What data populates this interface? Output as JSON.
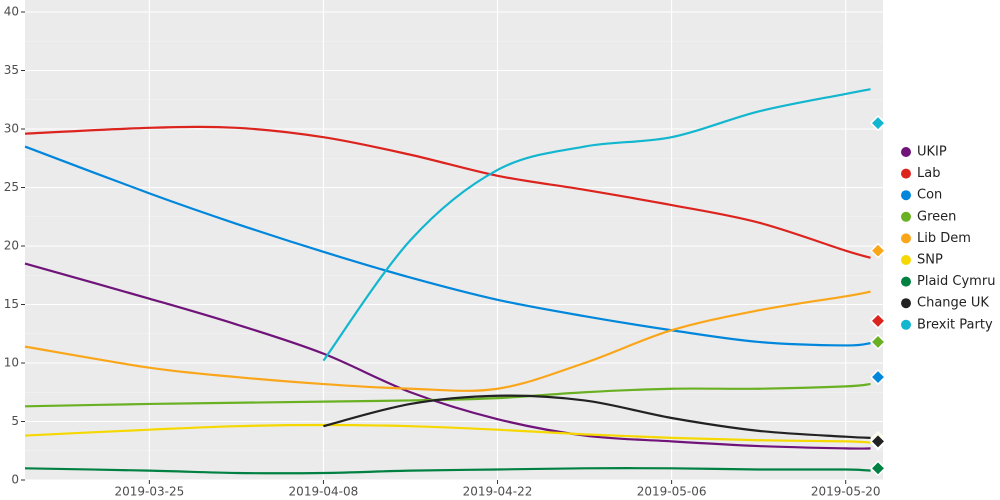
{
  "chart_data": {
    "type": "line",
    "x": [
      "2019-03-15",
      "2019-03-25",
      "2019-04-01",
      "2019-04-08",
      "2019-04-15",
      "2019-04-22",
      "2019-04-29",
      "2019-05-06",
      "2019-05-13",
      "2019-05-20",
      "2019-05-22"
    ],
    "xlim": [
      "2019-03-15",
      "2019-05-23"
    ],
    "xticks": [
      "2019-03-25",
      "2019-04-08",
      "2019-04-22",
      "2019-05-06",
      "2019-05-20"
    ],
    "ylim": [
      0,
      40
    ],
    "yticks": [
      0,
      5,
      10,
      15,
      20,
      25,
      30,
      35,
      40
    ],
    "grid": true,
    "result_date": "2019-05-23",
    "series": [
      {
        "name": "UKIP",
        "color": "#70147a",
        "values": [
          18.5,
          15.5,
          13.3,
          10.8,
          7.5,
          5.2,
          3.8,
          3.3,
          2.9,
          2.7,
          2.7
        ],
        "result": 3.2
      },
      {
        "name": "Lab",
        "color": "#dc241f",
        "values": [
          29.6,
          30.1,
          30.1,
          29.3,
          27.8,
          26.0,
          24.8,
          23.5,
          22.0,
          19.6,
          19.0
        ],
        "result": 13.6
      },
      {
        "name": "Con",
        "color": "#0087dc",
        "values": [
          28.5,
          24.5,
          21.9,
          19.5,
          17.3,
          15.4,
          14.0,
          12.8,
          11.8,
          11.5,
          11.7
        ],
        "result": 8.8
      },
      {
        "name": "Green",
        "color": "#6ab023",
        "values": [
          6.3,
          6.5,
          6.6,
          6.7,
          6.8,
          7.0,
          7.5,
          7.8,
          7.8,
          8.0,
          8.2
        ],
        "result": 11.8
      },
      {
        "name": "Lib Dem",
        "color": "#faa61a",
        "values": [
          11.4,
          9.6,
          8.8,
          8.2,
          7.8,
          7.8,
          10.0,
          12.8,
          14.5,
          15.7,
          16.1
        ],
        "result": 19.6
      },
      {
        "name": "SNP",
        "color": "#f5d800",
        "values": [
          3.8,
          4.3,
          4.6,
          4.7,
          4.6,
          4.3,
          3.9,
          3.6,
          3.4,
          3.3,
          3.2
        ],
        "result": 3.5
      },
      {
        "name": "Plaid Cymru",
        "color": "#008142",
        "values": [
          1.0,
          0.8,
          0.6,
          0.6,
          0.8,
          0.9,
          1.0,
          1.0,
          0.9,
          0.9,
          0.8
        ],
        "result": 1.0
      },
      {
        "name": "Change UK",
        "color": "#222222",
        "values": [
          null,
          null,
          null,
          4.6,
          6.5,
          7.2,
          6.8,
          5.3,
          4.2,
          3.7,
          3.6
        ],
        "result": 3.3
      },
      {
        "name": "Brexit Party",
        "color": "#12b6cf",
        "values": [
          null,
          null,
          null,
          10.2,
          20.5,
          26.5,
          28.5,
          29.3,
          31.5,
          33.0,
          33.4
        ],
        "result": 30.5
      }
    ]
  }
}
